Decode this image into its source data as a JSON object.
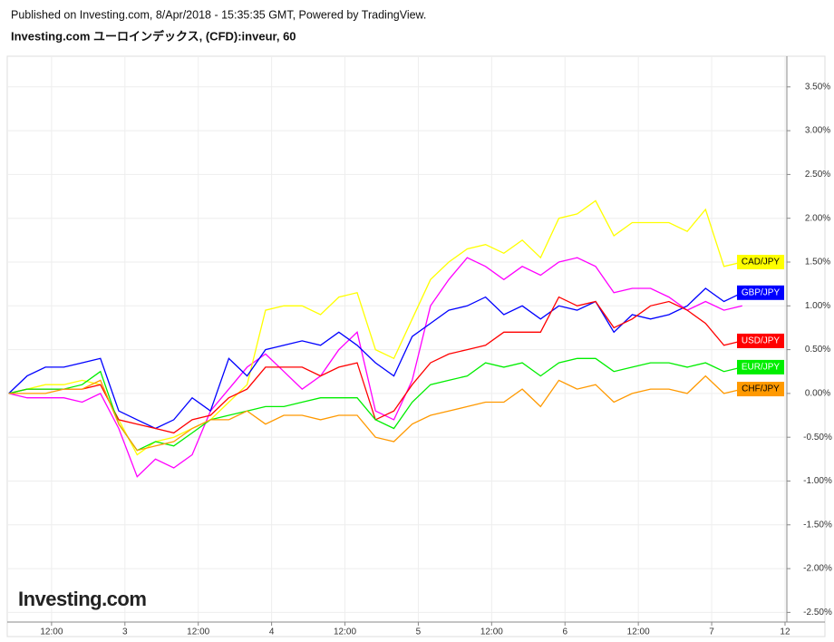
{
  "header": {
    "published": "Published on Investing.com, 8/Apr/2018 - 15:35:35 GMT, Powered by TradingView.",
    "symbol": "Investing.com ユーロインデックス, (CFD):inveur, 60"
  },
  "chart_data": {
    "type": "line",
    "watermark": "Investing.com",
    "x": [
      5,
      8,
      11,
      14,
      17,
      20,
      23,
      26,
      29,
      32,
      35,
      38,
      41,
      44,
      47,
      50,
      53,
      56,
      59,
      62,
      65,
      68,
      71,
      74,
      77,
      80,
      83,
      86,
      89,
      92,
      95,
      98,
      101,
      104,
      107,
      110,
      113,
      116,
      119,
      122,
      125
    ],
    "xlim": [
      4.75,
      132.3
    ],
    "xticks": [
      {
        "value": 12,
        "label": "12:00"
      },
      {
        "value": 24,
        "label": "3"
      },
      {
        "value": 36,
        "label": "12:00"
      },
      {
        "value": 48,
        "label": "4"
      },
      {
        "value": 60,
        "label": "12:00"
      },
      {
        "value": 72,
        "label": "5"
      },
      {
        "value": 84,
        "label": "12:00"
      },
      {
        "value": 96,
        "label": "6"
      },
      {
        "value": 108,
        "label": "12:00"
      },
      {
        "value": 120,
        "label": "7"
      },
      {
        "value": 132,
        "label": "12"
      }
    ],
    "ylim": [
      -2.61,
      3.85
    ],
    "yticks": [
      {
        "value": -2.5,
        "label": "-2.50%"
      },
      {
        "value": -2,
        "label": "-2.00%"
      },
      {
        "value": -1.5,
        "label": "-1.50%"
      },
      {
        "value": -1,
        "label": "-1.00%"
      },
      {
        "value": -0.5,
        "label": "-0.50%"
      },
      {
        "value": 0,
        "label": "0.00%"
      },
      {
        "value": 0.5,
        "label": "0.50%"
      },
      {
        "value": 1,
        "label": "1.00%"
      },
      {
        "value": 1.5,
        "label": "1.50%"
      },
      {
        "value": 2,
        "label": "2.00%"
      },
      {
        "value": 2.5,
        "label": "2.50%"
      },
      {
        "value": 3,
        "label": "3.00%"
      },
      {
        "value": 3.5,
        "label": "3.50%"
      }
    ],
    "grid": true,
    "series": [
      {
        "color": "#ff00ff",
        "values": [
          0,
          -0.05,
          -0.05,
          -0.05,
          -0.1,
          0,
          -0.4,
          -0.95,
          -0.75,
          -0.85,
          -0.7,
          -0.2,
          0.05,
          0.3,
          0.45,
          0.25,
          0.05,
          0.2,
          0.5,
          0.7,
          -0.2,
          -0.3,
          0.15,
          1.0,
          1.3,
          1.55,
          1.45,
          1.3,
          1.45,
          1.35,
          1.5,
          1.55,
          1.45,
          1.15,
          1.2,
          1.2,
          1.1,
          0.95,
          1.05,
          0.95,
          1.0
        ]
      },
      {
        "name": "CAD/JPY",
        "color": "#ffff00",
        "values": [
          0,
          0.05,
          0.1,
          0.1,
          0.15,
          0.1,
          -0.3,
          -0.7,
          -0.55,
          -0.5,
          -0.4,
          -0.3,
          -0.1,
          0.1,
          0.95,
          1.0,
          1.0,
          0.9,
          1.1,
          1.15,
          0.5,
          0.4,
          0.85,
          1.3,
          1.5,
          1.65,
          1.7,
          1.6,
          1.75,
          1.55,
          2.0,
          2.05,
          2.2,
          1.8,
          1.95,
          1.95,
          1.95,
          1.85,
          2.1,
          1.45,
          1.5
        ]
      },
      {
        "name": "GBP/JPY",
        "color": "#0000ff",
        "values": [
          0,
          0.2,
          0.3,
          0.3,
          0.35,
          0.4,
          -0.2,
          -0.3,
          -0.4,
          -0.3,
          -0.05,
          -0.2,
          0.4,
          0.2,
          0.5,
          0.55,
          0.6,
          0.55,
          0.7,
          0.55,
          0.35,
          0.2,
          0.65,
          0.8,
          0.95,
          1.0,
          1.1,
          0.9,
          1.0,
          0.85,
          1.0,
          0.95,
          1.05,
          0.7,
          0.9,
          0.85,
          0.9,
          1.0,
          1.2,
          1.05,
          1.15
        ]
      },
      {
        "name": "USD/JPY",
        "color": "#ff0000",
        "values": [
          0,
          0.05,
          0.05,
          0.05,
          0.05,
          0.1,
          -0.3,
          -0.35,
          -0.4,
          -0.45,
          -0.3,
          -0.25,
          -0.05,
          0.05,
          0.3,
          0.3,
          0.3,
          0.2,
          0.3,
          0.35,
          -0.3,
          -0.2,
          0.1,
          0.35,
          0.45,
          0.5,
          0.55,
          0.7,
          0.7,
          0.7,
          1.1,
          1.0,
          1.05,
          0.75,
          0.85,
          1.0,
          1.05,
          0.95,
          0.8,
          0.55,
          0.6
        ]
      },
      {
        "name": "EUR/JPY",
        "color": "#00ee00",
        "values": [
          0,
          0.05,
          0.05,
          0.05,
          0.1,
          0.25,
          -0.35,
          -0.65,
          -0.55,
          -0.6,
          -0.45,
          -0.3,
          -0.25,
          -0.2,
          -0.15,
          -0.15,
          -0.1,
          -0.05,
          -0.05,
          -0.05,
          -0.3,
          -0.4,
          -0.1,
          0.1,
          0.15,
          0.2,
          0.35,
          0.3,
          0.35,
          0.2,
          0.35,
          0.4,
          0.4,
          0.25,
          0.3,
          0.35,
          0.35,
          0.3,
          0.35,
          0.25,
          0.3
        ]
      },
      {
        "name": "CHF/JPY",
        "color": "#ff9900",
        "values": [
          0,
          0,
          0,
          0.05,
          0.05,
          0.15,
          -0.35,
          -0.65,
          -0.6,
          -0.55,
          -0.4,
          -0.3,
          -0.3,
          -0.2,
          -0.35,
          -0.25,
          -0.25,
          -0.3,
          -0.25,
          -0.25,
          -0.5,
          -0.55,
          -0.35,
          -0.25,
          -0.2,
          -0.15,
          -0.1,
          -0.1,
          0.05,
          -0.15,
          0.15,
          0.05,
          0.1,
          -0.1,
          0,
          0.05,
          0.05,
          0,
          0.2,
          0,
          0.05
        ]
      }
    ]
  }
}
